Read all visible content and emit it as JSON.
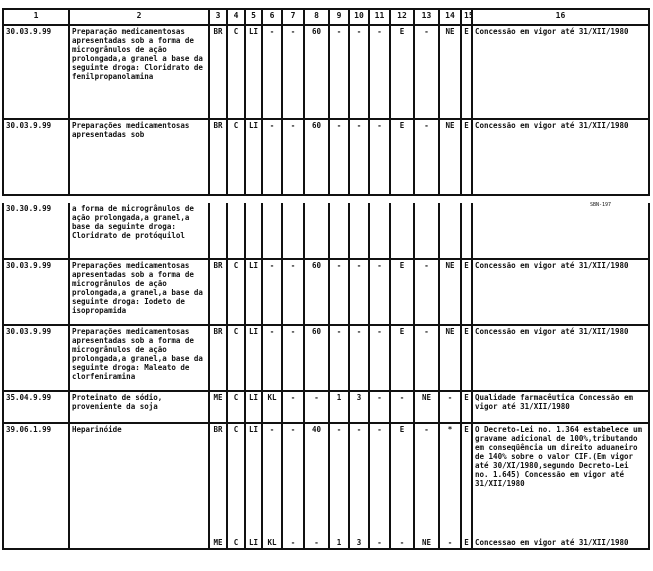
{
  "header": [
    "1",
    "2",
    "3",
    "4",
    "5",
    "6",
    "7",
    "8",
    "9",
    "10",
    "11",
    "12",
    "13",
    "14",
    "15",
    "16"
  ],
  "page_tag": "SBN-197",
  "rows": [
    {
      "code": "30.03.9.99",
      "desc": "Preparação medicamentosas apresentadas sob a forma de microgrânulos de ação prolongada,a granel a base da seguinte droga: Cloridrato de fenilpropanolamina",
      "cols": [
        "BR",
        "C",
        "LI",
        "-",
        "-",
        "60",
        "-",
        "-",
        "-",
        "E",
        "-",
        "NE",
        "E"
      ],
      "obs": "Concessão em vigor até 31/XII/1980"
    },
    {
      "code": "30.03.9.99",
      "desc": "Preparações medicamentosas apresentadas sob",
      "cols": [
        "BR",
        "C",
        "LI",
        "-",
        "-",
        "60",
        "-",
        "-",
        "-",
        "E",
        "-",
        "NE",
        "E"
      ],
      "obs": "Concessão em vigor até 31/XII/1980"
    },
    {
      "code": "30.30.9.99",
      "desc": "a forma de microgrânulos de ação prolongada,a granel,a base da seguinte droga: Cloridrato de protóquilol",
      "cols": [
        "",
        "",
        "",
        "",
        "",
        "",
        "",
        "",
        "",
        "",
        "",
        "",
        ""
      ],
      "obs": ""
    },
    {
      "code": "30.03.9.99",
      "desc": "Preparações medicamentosas apresentadas sob a forma de microgrânulos de ação prolongada,a granel,a base da seguinte droga: Iodeto de isopropamida",
      "cols": [
        "BR",
        "C",
        "LI",
        "-",
        "-",
        "60",
        "-",
        "-",
        "-",
        "E",
        "-",
        "NE",
        "E"
      ],
      "obs": "Concessão em vigor até 31/XII/1980"
    },
    {
      "code": "30.03.9.99",
      "desc": "Preparações medicamentosas apresentadas sob a forma de microgrânulos de ação prolongada,a granel,a base da seguinte droga: Maleato de clorfeniramina",
      "cols": [
        "BR",
        "C",
        "LI",
        "-",
        "-",
        "60",
        "-",
        "-",
        "-",
        "E",
        "-",
        "NE",
        "E"
      ],
      "obs": "Concessão em vigor até 31/XII/1980"
    },
    {
      "code": "35.04.9.99",
      "desc": "Proteinato de sódio, proveniente da soja",
      "cols": [
        "ME",
        "C",
        "LI",
        "KL",
        "-",
        "-",
        "1",
        "3",
        "-",
        "-",
        "NE",
        "-",
        "E"
      ],
      "obs": "Qualidade farmacêutica Concessão em vigor até 31/XII/1980"
    },
    {
      "code": "39.06.1.99",
      "desc": "Heparinóide",
      "cols": [
        "BR",
        "C",
        "LI",
        "-",
        "-",
        "40",
        "-",
        "-",
        "-",
        "E",
        "-",
        "*",
        "E"
      ],
      "obs": "O Decreto-Lei no. 1.364 estabelece um gravame adicional de 100%,tributando em conseqüência um direito aduaneiro de 140% sobre o valor CIF.(Em vigor até 30/XI/1980,segundo Decreto-Lei no. 1.645) Concessão em vigor até 31/XII/1980",
      "cols2": [
        "ME",
        "C",
        "LI",
        "KL",
        "-",
        "-",
        "1",
        "3",
        "-",
        "-",
        "NE",
        "-",
        "E"
      ],
      "obs2": "Concessao em vigor até 31/XII/1980"
    }
  ]
}
